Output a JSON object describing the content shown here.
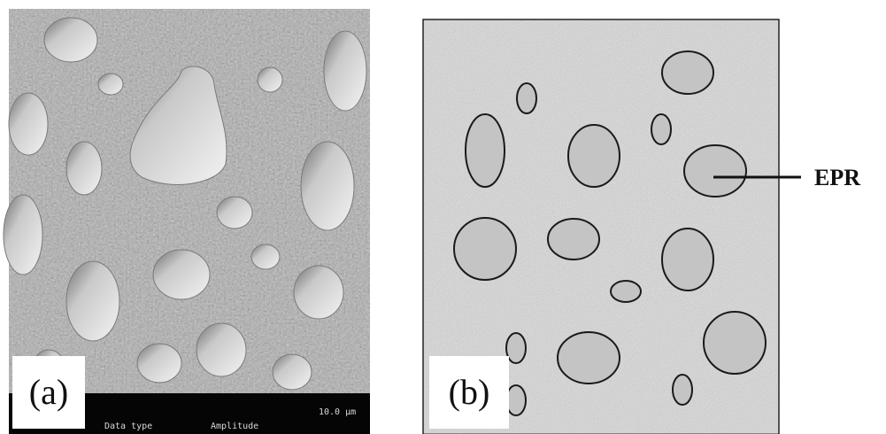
{
  "panels": [
    {
      "label": "(a)",
      "data_type_label": "Data type",
      "data_type_value": "Amplitude",
      "scale": "10.0 µm"
    },
    {
      "label": "(b)",
      "annotation": "EPR"
    }
  ]
}
